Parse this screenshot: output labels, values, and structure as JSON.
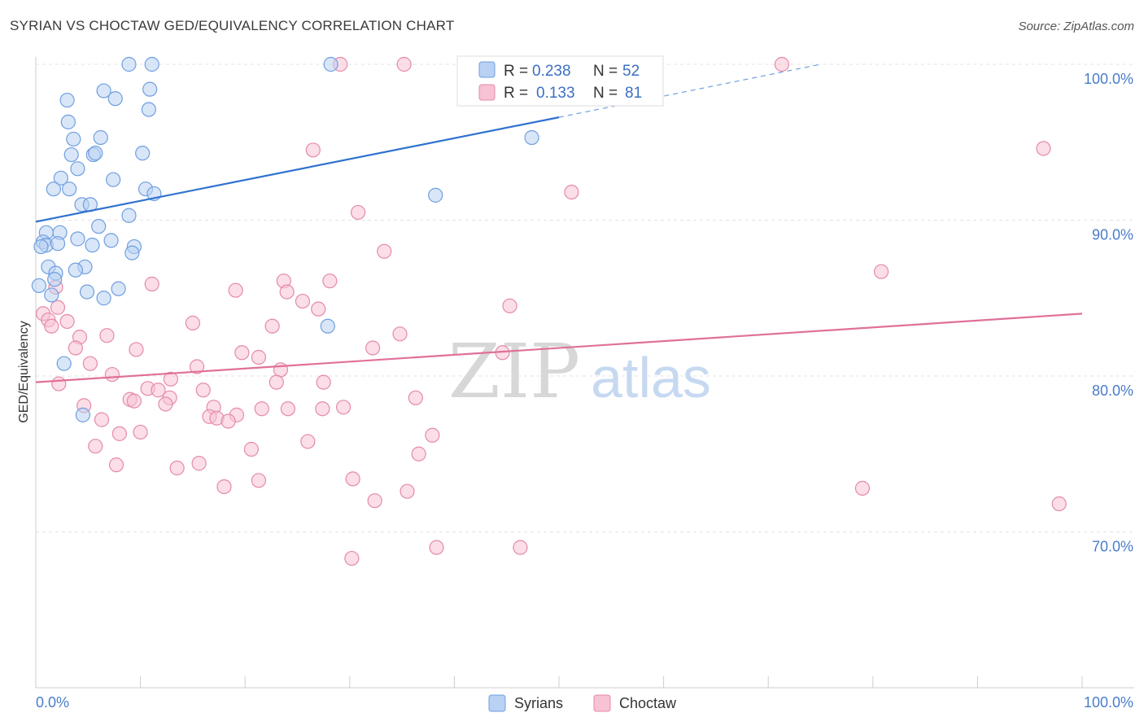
{
  "title": "SYRIAN VS CHOCTAW GED/EQUIVALENCY CORRELATION CHART",
  "source": "Source: ZipAtlas.com",
  "watermark": {
    "zip": "ZIP",
    "atlas": "atlas"
  },
  "chart_data": {
    "type": "scatter",
    "ylabel": "GED/Equivalency",
    "xlim": [
      0,
      100
    ],
    "ylim": [
      60,
      100.5
    ],
    "x_tick_labels": [
      "0.0%",
      "100.0%"
    ],
    "y_ticks": [
      {
        "value": 100,
        "label": "100.0%"
      },
      {
        "value": 90,
        "label": "90.0%"
      },
      {
        "value": 80,
        "label": "80.0%"
      },
      {
        "value": 70,
        "label": "70.0%"
      }
    ],
    "legend": [
      {
        "series": "Syrians",
        "r_label": "R =",
        "r_value": "0.238",
        "n_label": "N =",
        "n_value": "52"
      },
      {
        "series": "Choctaw",
        "r_label": "R =",
        "r_value": "0.133",
        "n_label": "N =",
        "n_value": "81"
      }
    ],
    "series": [
      {
        "name": "Syrians",
        "color": "#6f9fe0",
        "fill": "#b9d1f3",
        "trend": {
          "x0": 0,
          "y0": 89.9,
          "x1": 50,
          "y1": 96.6,
          "dash_to_x": 75,
          "dash_to_y": 100.0
        },
        "points": [
          [
            8.9,
            100
          ],
          [
            11.1,
            100
          ],
          [
            28.2,
            100
          ],
          [
            10.9,
            98.4
          ],
          [
            6.5,
            98.3
          ],
          [
            7.6,
            97.8
          ],
          [
            3.0,
            97.7
          ],
          [
            10.8,
            97.1
          ],
          [
            3.1,
            96.3
          ],
          [
            3.6,
            95.2
          ],
          [
            6.2,
            95.3
          ],
          [
            47.4,
            95.3
          ],
          [
            3.4,
            94.2
          ],
          [
            5.5,
            94.2
          ],
          [
            5.7,
            94.3
          ],
          [
            10.2,
            94.3
          ],
          [
            4.0,
            93.3
          ],
          [
            2.4,
            92.7
          ],
          [
            7.4,
            92.6
          ],
          [
            1.7,
            92.0
          ],
          [
            3.2,
            92.0
          ],
          [
            10.5,
            92.0
          ],
          [
            11.3,
            91.7
          ],
          [
            38.2,
            91.6
          ],
          [
            4.4,
            91.0
          ],
          [
            5.2,
            91.0
          ],
          [
            8.9,
            90.3
          ],
          [
            6.0,
            89.6
          ],
          [
            1.0,
            89.2
          ],
          [
            2.3,
            89.2
          ],
          [
            4.0,
            88.8
          ],
          [
            7.2,
            88.7
          ],
          [
            0.7,
            88.6
          ],
          [
            1.0,
            88.4
          ],
          [
            0.5,
            88.3
          ],
          [
            2.1,
            88.5
          ],
          [
            5.4,
            88.4
          ],
          [
            9.4,
            88.3
          ],
          [
            9.2,
            87.9
          ],
          [
            1.2,
            87.0
          ],
          [
            4.7,
            87.0
          ],
          [
            3.8,
            86.8
          ],
          [
            1.9,
            86.6
          ],
          [
            1.8,
            86.2
          ],
          [
            0.3,
            85.8
          ],
          [
            7.9,
            85.6
          ],
          [
            4.9,
            85.4
          ],
          [
            1.5,
            85.2
          ],
          [
            6.5,
            85.0
          ],
          [
            27.9,
            83.2
          ],
          [
            2.7,
            80.8
          ],
          [
            4.5,
            77.5
          ]
        ]
      },
      {
        "name": "Choctaw",
        "color": "#e58aa8",
        "fill": "#f7c2d3",
        "trend": {
          "x0": 0,
          "y0": 79.6,
          "x1": 100,
          "y1": 84.0
        },
        "points": [
          [
            29.1,
            100
          ],
          [
            35.2,
            100
          ],
          [
            71.3,
            100
          ],
          [
            96.3,
            94.6
          ],
          [
            26.5,
            94.5
          ],
          [
            51.2,
            91.8
          ],
          [
            30.8,
            90.5
          ],
          [
            33.3,
            88.0
          ],
          [
            80.8,
            86.7
          ],
          [
            11.1,
            85.9
          ],
          [
            28.1,
            86.1
          ],
          [
            19.1,
            85.5
          ],
          [
            1.9,
            85.7
          ],
          [
            23.7,
            86.1
          ],
          [
            24.0,
            85.4
          ],
          [
            25.5,
            84.8
          ],
          [
            27.0,
            84.3
          ],
          [
            45.3,
            84.5
          ],
          [
            2.1,
            84.4
          ],
          [
            0.7,
            84.0
          ],
          [
            1.2,
            83.6
          ],
          [
            3.0,
            83.5
          ],
          [
            1.5,
            83.2
          ],
          [
            15.0,
            83.4
          ],
          [
            22.6,
            83.2
          ],
          [
            6.8,
            82.6
          ],
          [
            4.2,
            82.5
          ],
          [
            34.8,
            82.7
          ],
          [
            3.8,
            81.8
          ],
          [
            9.6,
            81.7
          ],
          [
            32.2,
            81.8
          ],
          [
            19.7,
            81.5
          ],
          [
            21.3,
            81.2
          ],
          [
            44.6,
            81.5
          ],
          [
            5.2,
            80.8
          ],
          [
            15.4,
            80.6
          ],
          [
            23.4,
            80.4
          ],
          [
            7.3,
            80.1
          ],
          [
            12.9,
            79.8
          ],
          [
            23.0,
            79.6
          ],
          [
            27.5,
            79.6
          ],
          [
            2.2,
            79.5
          ],
          [
            10.7,
            79.2
          ],
          [
            11.7,
            79.1
          ],
          [
            16.0,
            79.1
          ],
          [
            9.0,
            78.5
          ],
          [
            12.8,
            78.6
          ],
          [
            36.3,
            78.6
          ],
          [
            9.4,
            78.4
          ],
          [
            12.4,
            78.2
          ],
          [
            4.6,
            78.1
          ],
          [
            17.0,
            78.0
          ],
          [
            21.6,
            77.9
          ],
          [
            24.1,
            77.9
          ],
          [
            27.4,
            77.9
          ],
          [
            29.4,
            78.0
          ],
          [
            16.6,
            77.4
          ],
          [
            19.2,
            77.5
          ],
          [
            17.3,
            77.3
          ],
          [
            18.4,
            77.1
          ],
          [
            6.3,
            77.2
          ],
          [
            10.0,
            76.4
          ],
          [
            8.0,
            76.3
          ],
          [
            37.9,
            76.2
          ],
          [
            26.0,
            75.8
          ],
          [
            5.7,
            75.5
          ],
          [
            20.6,
            75.3
          ],
          [
            36.6,
            75.0
          ],
          [
            15.6,
            74.4
          ],
          [
            7.7,
            74.3
          ],
          [
            13.5,
            74.1
          ],
          [
            30.3,
            73.4
          ],
          [
            21.3,
            73.3
          ],
          [
            18.0,
            72.9
          ],
          [
            35.5,
            72.6
          ],
          [
            79.0,
            72.8
          ],
          [
            32.4,
            72.0
          ],
          [
            97.8,
            71.8
          ],
          [
            38.3,
            69.0
          ],
          [
            46.3,
            69.0
          ],
          [
            30.2,
            68.3
          ]
        ]
      }
    ]
  },
  "bottom_legend": [
    "Syrians",
    "Choctaw"
  ]
}
